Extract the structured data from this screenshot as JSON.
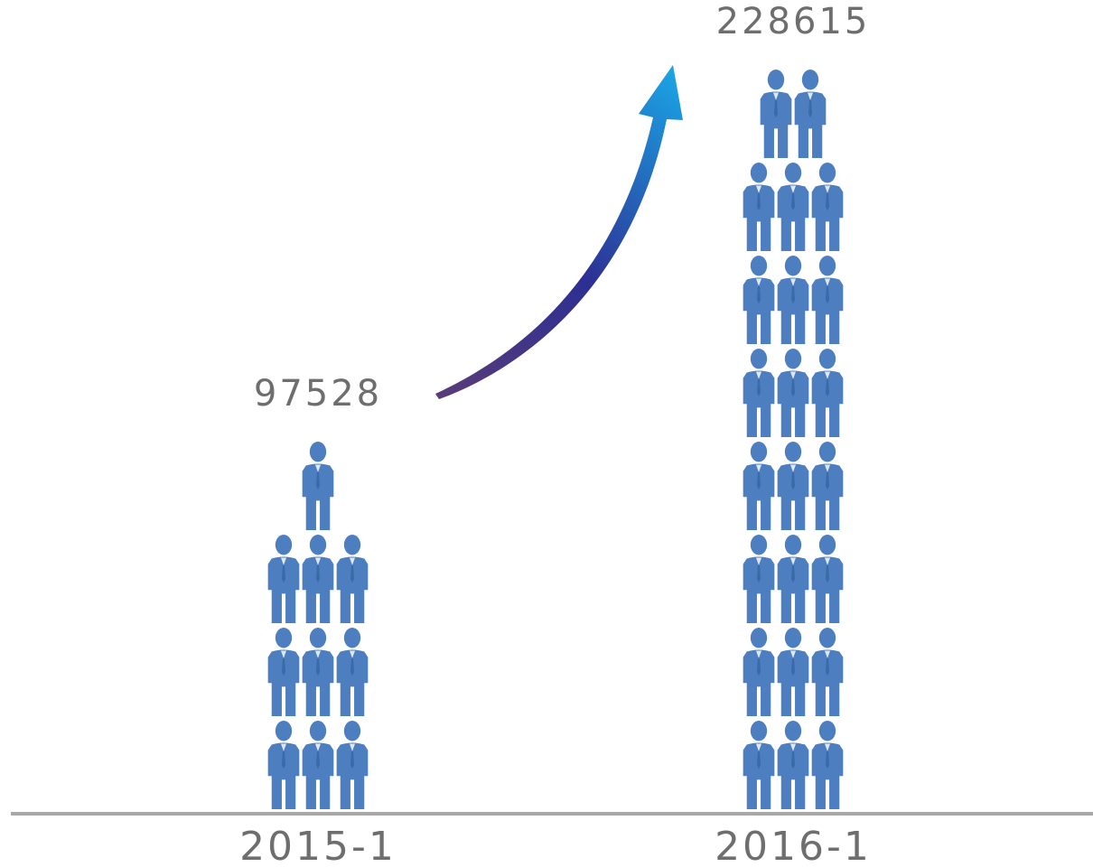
{
  "chart_data": {
    "type": "pictograph-bar",
    "categories": [
      "2015-1",
      "2016-1"
    ],
    "values": [
      97528,
      228615
    ],
    "icon_counts": [
      10,
      23
    ],
    "icon": "person-in-suit-icon",
    "title": "",
    "xlabel": "",
    "ylabel": "",
    "annotation": "growth-arrow-icon",
    "grid": false,
    "legend": "none"
  },
  "colors": {
    "icon_fill": "#4d7fc0",
    "axis_line": "#a8a8a8",
    "label_text": "#6e6e6e",
    "arrow_start": "#5a3c78",
    "arrow_mid": "#2d2f93",
    "arrow_end": "#1aa6e6"
  }
}
